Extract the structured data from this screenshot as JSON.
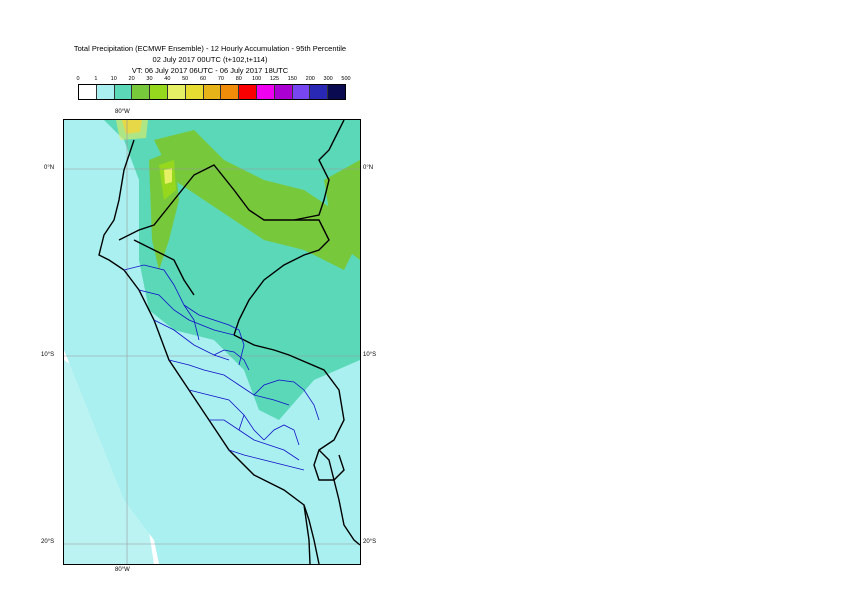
{
  "header": {
    "title_line1": "Total Precipitation (ECMWF Ensemble) - 12 Hourly Accumulation - 95th Percentile",
    "title_line2": "02 July 2017 00UTC (t+102,t+114)",
    "title_line3": "VT: 06 July 2017 06UTC - 06 July 2017 18UTC"
  },
  "legend": {
    "ticks": [
      "0",
      "1",
      "10",
      "20",
      "30",
      "40",
      "50",
      "60",
      "70",
      "80",
      "100",
      "125",
      "150",
      "200",
      "300",
      "500"
    ],
    "colors": [
      "#ffffff",
      "#aaf0f0",
      "#5ad8b8",
      "#78c83c",
      "#96d81e",
      "#e6f064",
      "#e6dc32",
      "#e6b419",
      "#f08c0a",
      "#fa0000",
      "#f000f0",
      "#aa00d2",
      "#7846f0",
      "#2828b4",
      "#0a0a50"
    ]
  },
  "map": {
    "lat_labels": [
      "0°N",
      "10°S",
      "20°S"
    ],
    "lon_labels": [
      "80°W",
      "80°W"
    ],
    "field_colors": {
      "light": "#aaf0f0",
      "teal": "#5ad8b8",
      "green": "#78c83c",
      "lime": "#96d81e",
      "yellow": "#e6f064",
      "orange": "#e6b419"
    }
  }
}
